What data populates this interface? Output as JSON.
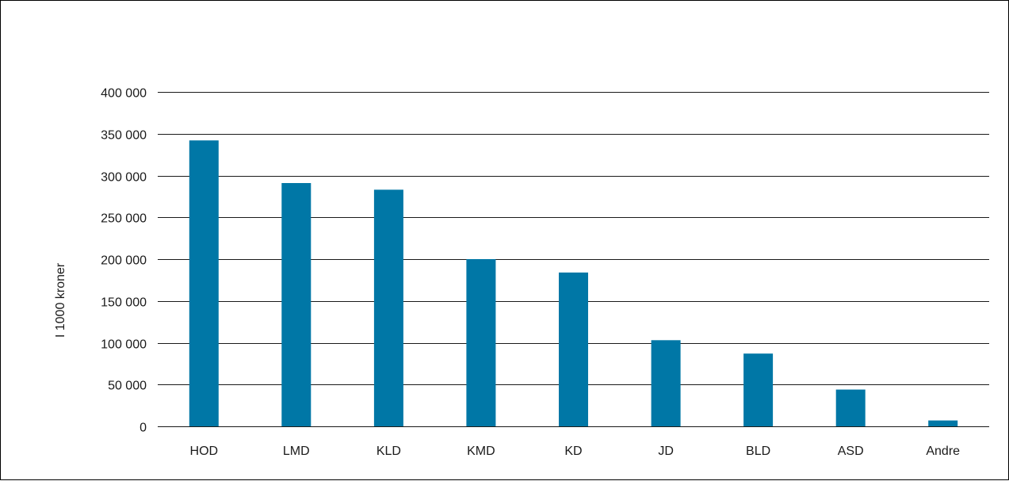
{
  "chart_data": {
    "type": "bar",
    "categories": [
      "HOD",
      "LMD",
      "KLD",
      "KMD",
      "KD",
      "JD",
      "BLD",
      "ASD",
      "Andre"
    ],
    "values": [
      342000,
      291000,
      283000,
      200000,
      184000,
      103000,
      87000,
      44000,
      7000
    ],
    "ylabel": "I 1000 kroner",
    "ylim": [
      0,
      400000
    ],
    "yticks": [
      0,
      50000,
      100000,
      150000,
      200000,
      250000,
      300000,
      350000,
      400000
    ],
    "ytick_labels": [
      "0",
      "50 000",
      "100 000",
      "150 000",
      "200 000",
      "250 000",
      "300 000",
      "350 000",
      "400 000"
    ],
    "grid": true,
    "bar_color": "#0077a6",
    "grid_color": "#1a1a1a"
  }
}
